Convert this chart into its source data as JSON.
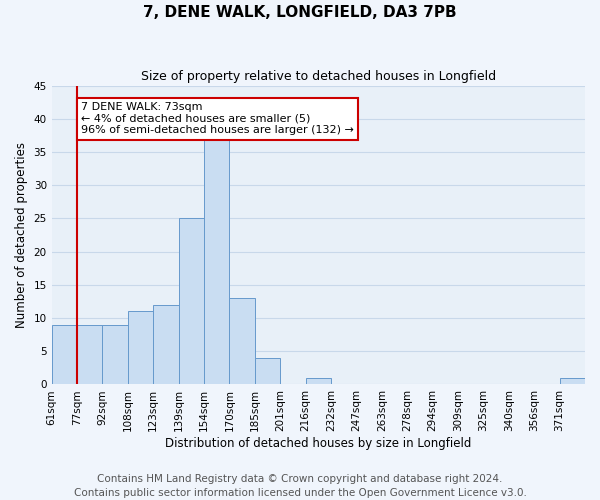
{
  "title": "7, DENE WALK, LONGFIELD, DA3 7PB",
  "subtitle": "Size of property relative to detached houses in Longfield",
  "xlabel": "Distribution of detached houses by size in Longfield",
  "ylabel": "Number of detached properties",
  "bar_color": "#c9ddf2",
  "bar_edge_color": "#6699cc",
  "grid_color": "#c8d8ea",
  "background_color": "#e8f0f8",
  "fig_background_color": "#f0f5fc",
  "bin_labels": [
    "61sqm",
    "77sqm",
    "92sqm",
    "108sqm",
    "123sqm",
    "139sqm",
    "154sqm",
    "170sqm",
    "185sqm",
    "201sqm",
    "216sqm",
    "232sqm",
    "247sqm",
    "263sqm",
    "278sqm",
    "294sqm",
    "309sqm",
    "325sqm",
    "340sqm",
    "356sqm",
    "371sqm"
  ],
  "bin_values": [
    9,
    9,
    9,
    11,
    12,
    25,
    37,
    13,
    4,
    0,
    1,
    0,
    0,
    0,
    0,
    0,
    0,
    0,
    0,
    0,
    1
  ],
  "property_line_bin_index": 1,
  "annotation_text_line1": "7 DENE WALK: 73sqm",
  "annotation_text_line2": "← 4% of detached houses are smaller (5)",
  "annotation_text_line3": "96% of semi-detached houses are larger (132) →",
  "annotation_box_edge_color": "#cc0000",
  "annotation_box_facecolor": "#ffffff",
  "ylim": [
    0,
    45
  ],
  "yticks": [
    0,
    5,
    10,
    15,
    20,
    25,
    30,
    35,
    40,
    45
  ],
  "footer_text": "Contains HM Land Registry data © Crown copyright and database right 2024.\nContains public sector information licensed under the Open Government Licence v3.0.",
  "footer_fontsize": 7.5,
  "title_fontsize": 11,
  "subtitle_fontsize": 9,
  "axis_label_fontsize": 8.5,
  "tick_fontsize": 7.5,
  "annotation_fontsize": 8
}
